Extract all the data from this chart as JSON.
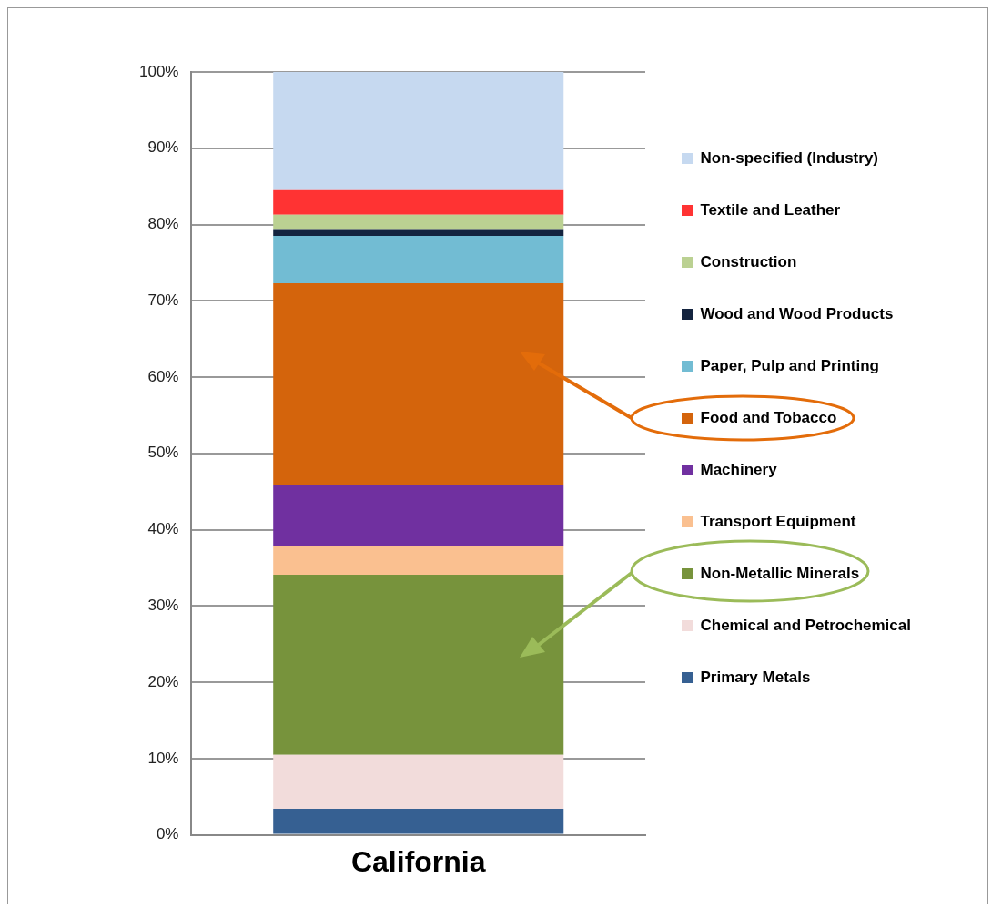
{
  "chart_data": {
    "type": "bar",
    "stacked": true,
    "categories": [
      "California"
    ],
    "series": [
      {
        "name": "Primary Metals",
        "color": "#366092",
        "values": [
          3.4
        ]
      },
      {
        "name": "Chemical and Petrochemical",
        "color": "#f2dcdb",
        "values": [
          7.1
        ]
      },
      {
        "name": "Non-Metallic Minerals",
        "color": "#77933c",
        "values": [
          23.6
        ]
      },
      {
        "name": "Transport Equipment",
        "color": "#fac090",
        "values": [
          3.8
        ]
      },
      {
        "name": "Machinery",
        "color": "#7030a0",
        "values": [
          7.9
        ]
      },
      {
        "name": "Food and Tobacco",
        "color": "#d4640c",
        "values": [
          26.5
        ]
      },
      {
        "name": "Paper, Pulp and Printing",
        "color": "#72bcd3",
        "values": [
          6.2
        ]
      },
      {
        "name": "Wood and Wood Products",
        "color": "#14243f",
        "values": [
          0.9
        ]
      },
      {
        "name": "Construction",
        "color": "#bbd192",
        "values": [
          1.9
        ]
      },
      {
        "name": "Textile and Leather",
        "color": "#ff3333",
        "values": [
          3.2
        ]
      },
      {
        "name": "Non-specified (Industry)",
        "color": "#c6d9f0",
        "values": [
          15.5
        ]
      }
    ],
    "ylim": [
      0,
      100
    ],
    "yticks": [
      {
        "value": 0,
        "label": "0%"
      },
      {
        "value": 10,
        "label": "10%"
      },
      {
        "value": 20,
        "label": "20%"
      },
      {
        "value": 30,
        "label": "30%"
      },
      {
        "value": 40,
        "label": "40%"
      },
      {
        "value": 50,
        "label": "50%"
      },
      {
        "value": 60,
        "label": "60%"
      },
      {
        "value": 70,
        "label": "70%"
      },
      {
        "value": 80,
        "label": "80%"
      },
      {
        "value": 90,
        "label": "90%"
      },
      {
        "value": 100,
        "label": "100%"
      }
    ],
    "grid": "y",
    "legend": "right"
  }
}
